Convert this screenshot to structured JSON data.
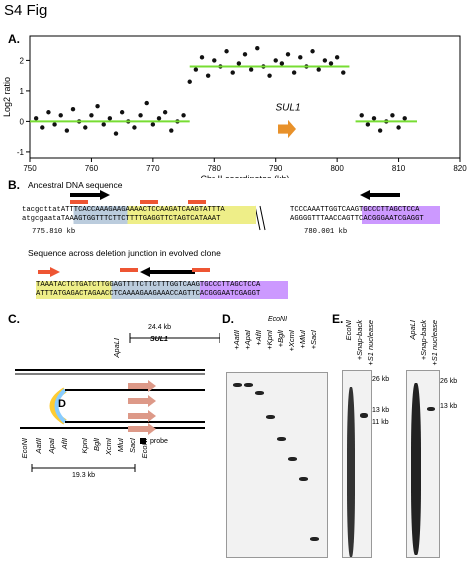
{
  "figure_title": "S4 Fig",
  "panels": {
    "a": {
      "label": "A."
    },
    "b": {
      "label": "B.",
      "ancestral_caption": "Ancestral DNA sequence",
      "junction_caption": "Sequence across deletion junction in evolved clone",
      "coord_left": "775.810 kb",
      "coord_right": "780.001 kb",
      "anc_top_left": "tacgcttatATTTCACCAAAGAAGAAAACTCCAAGATCAAGTATTTA",
      "anc_bot_left": "atgcgaataTAAAGTGGTTTCTTCTTTTGAGGTTCTAGTCATAAAT",
      "anc_top_right": "TCCCAAATTGGTCAAGTGCCCTTAGCTCCA",
      "anc_bot_right": "AGGGGTTTAACCAGTTCACGGGAATCGAGGT",
      "jun_top": "TAAATACTCTGATCTTGGAGTTTTCTTCTTTGGTCAAGTGCCCTTAGCTCCA",
      "jun_bot": "ATTTATGAGACTAGAACCTCAAAAGAAGAAACCAGTTCACGGGAATCGAGGT"
    },
    "c": {
      "label": "C.",
      "dist_top": "24.4 kb",
      "dist_bottom": "19.3 kb",
      "gene": "SUL1",
      "gene_apa": "ApaLI",
      "d_letter": "D",
      "probe": "probe",
      "sites": [
        "EcoNI",
        "AatII",
        "ApaI",
        "AfII",
        "KpnI",
        "BglI",
        "XcmI",
        "MluI",
        "SacI",
        "EcoNI"
      ]
    },
    "d": {
      "label": "D.",
      "enzyme": "EcoNI",
      "lanes": [
        "+AatII",
        "+ApaI",
        "+AfII",
        "+KpnI",
        "+BglI",
        "+XcmI",
        "+MluI",
        "+SacI",
        ""
      ]
    },
    "e": {
      "label": "E.",
      "left_lanes": [
        "EcoNI",
        "+Snap-back",
        "+S1 nuclease"
      ],
      "right_lanes": [
        "ApaLI",
        "+Snap-back",
        "+S1 nuclease"
      ],
      "left_markers": [
        "26 kb",
        "13 kb",
        "11 kb"
      ],
      "right_markers": [
        "26 kb",
        "13 kb"
      ]
    }
  },
  "chart_data": {
    "type": "scatter",
    "title": "",
    "xlabel": "Chr II coordinates (kb)",
    "ylabel": "Log2 ratio",
    "xlim": [
      750,
      820
    ],
    "ylim": [
      -1.2,
      2.8
    ],
    "xticks": [
      750,
      760,
      770,
      780,
      790,
      800,
      810,
      820
    ],
    "yticks": [
      -1,
      0,
      1,
      2
    ],
    "annotation": "SUL1",
    "segments": [
      {
        "x0": 750,
        "x1": 776,
        "y": 0
      },
      {
        "x0": 776,
        "x1": 802,
        "y": 1.8
      },
      {
        "x0": 803,
        "x1": 813,
        "y": 0
      }
    ],
    "points": [
      [
        751,
        0.1
      ],
      [
        752,
        -0.2
      ],
      [
        753,
        0.3
      ],
      [
        754,
        -0.1
      ],
      [
        755,
        0.2
      ],
      [
        756,
        -0.3
      ],
      [
        757,
        0.4
      ],
      [
        758,
        0.0
      ],
      [
        759,
        -0.2
      ],
      [
        760,
        0.2
      ],
      [
        761,
        0.5
      ],
      [
        762,
        -0.1
      ],
      [
        763,
        0.1
      ],
      [
        764,
        -0.4
      ],
      [
        765,
        0.3
      ],
      [
        766,
        0.0
      ],
      [
        767,
        -0.2
      ],
      [
        768,
        0.2
      ],
      [
        769,
        0.6
      ],
      [
        770,
        -0.1
      ],
      [
        771,
        0.1
      ],
      [
        772,
        0.3
      ],
      [
        773,
        -0.3
      ],
      [
        774,
        0.0
      ],
      [
        775,
        0.2
      ],
      [
        776,
        1.3
      ],
      [
        777,
        1.7
      ],
      [
        778,
        2.1
      ],
      [
        779,
        1.5
      ],
      [
        780,
        2.0
      ],
      [
        781,
        1.8
      ],
      [
        782,
        2.3
      ],
      [
        783,
        1.6
      ],
      [
        784,
        1.9
      ],
      [
        785,
        2.2
      ],
      [
        786,
        1.7
      ],
      [
        787,
        2.4
      ],
      [
        788,
        1.8
      ],
      [
        789,
        1.5
      ],
      [
        790,
        2.0
      ],
      [
        791,
        1.9
      ],
      [
        792,
        2.2
      ],
      [
        793,
        1.6
      ],
      [
        794,
        2.1
      ],
      [
        795,
        1.8
      ],
      [
        796,
        2.3
      ],
      [
        797,
        1.7
      ],
      [
        798,
        2.0
      ],
      [
        799,
        1.9
      ],
      [
        800,
        2.1
      ],
      [
        801,
        1.6
      ],
      [
        804,
        0.2
      ],
      [
        805,
        -0.1
      ],
      [
        806,
        0.1
      ],
      [
        807,
        -0.3
      ],
      [
        808,
        0.0
      ],
      [
        809,
        0.2
      ],
      [
        810,
        -0.2
      ],
      [
        811,
        0.1
      ]
    ]
  }
}
